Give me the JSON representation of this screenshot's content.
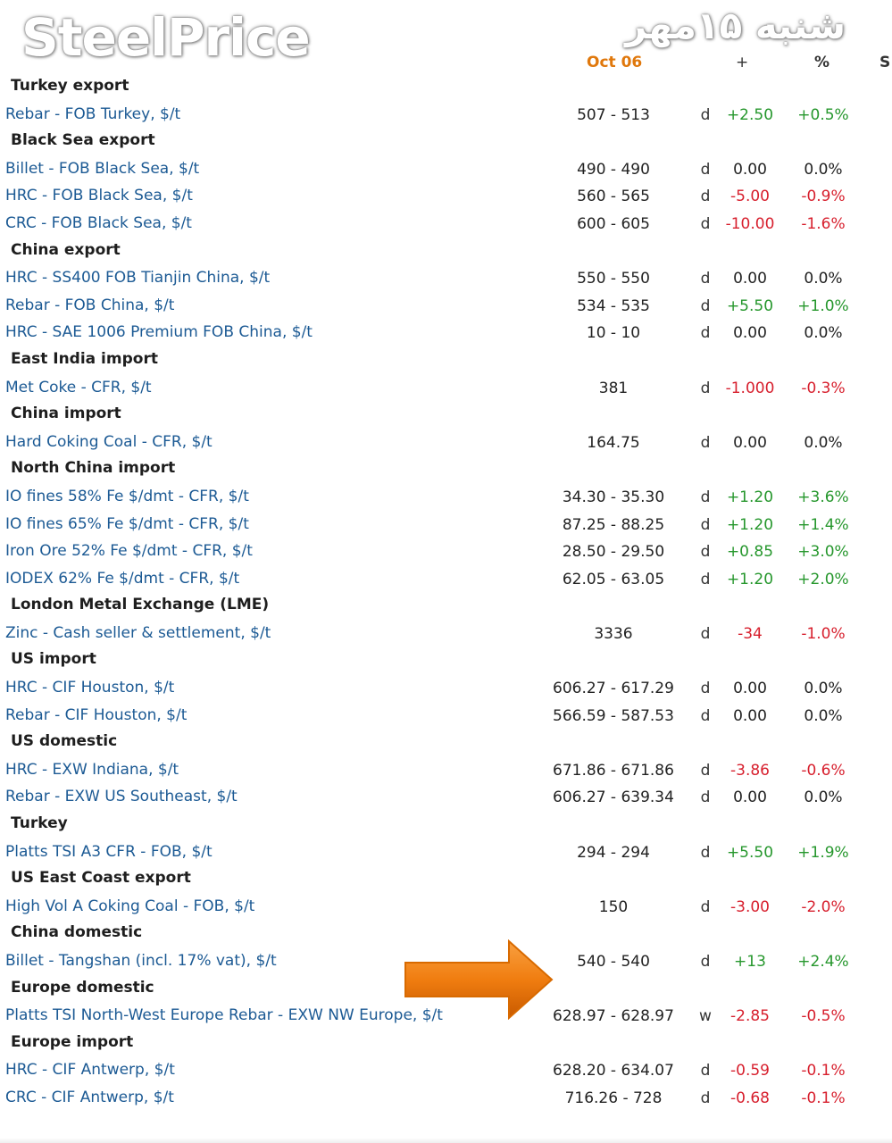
{
  "logo_text": "SteelPrice",
  "date_fa": "شنبه ۱۵مهر",
  "header": {
    "date": "Oct 06",
    "change": "+",
    "pct": "%",
    "s": "S"
  },
  "rows": [
    {
      "section": "Turkey export"
    },
    {
      "name": "Rebar - FOB Turkey, $/t",
      "range": "507 - 513",
      "freq": "d",
      "chg": "+2.50",
      "pct": "+0.5%",
      "dir": "up"
    },
    {
      "section": "Black Sea export"
    },
    {
      "name": "Billet - FOB Black Sea, $/t",
      "range": "490 - 490",
      "freq": "d",
      "chg": "0.00",
      "pct": "0.0%",
      "dir": "flat"
    },
    {
      "name": "HRC - FOB Black Sea, $/t",
      "range": "560 - 565",
      "freq": "d",
      "chg": "-5.00",
      "pct": "-0.9%",
      "dir": "down"
    },
    {
      "name": "CRC - FOB Black Sea, $/t",
      "range": "600 - 605",
      "freq": "d",
      "chg": "-10.00",
      "pct": "-1.6%",
      "dir": "down"
    },
    {
      "section": "China export"
    },
    {
      "name": "HRC - SS400 FOB Tianjin China, $/t",
      "range": "550 - 550",
      "freq": "d",
      "chg": "0.00",
      "pct": "0.0%",
      "dir": "flat"
    },
    {
      "name": "Rebar - FOB China, $/t",
      "range": "534 - 535",
      "freq": "d",
      "chg": "+5.50",
      "pct": "+1.0%",
      "dir": "up"
    },
    {
      "name": "HRC - SAE 1006 Premium FOB China, $/t",
      "range": "10 - 10",
      "freq": "d",
      "chg": "0.00",
      "pct": "0.0%",
      "dir": "flat"
    },
    {
      "section": "East India import"
    },
    {
      "name": "Met Coke - CFR, $/t",
      "range": "381",
      "freq": "d",
      "chg": "-1.000",
      "pct": "-0.3%",
      "dir": "down"
    },
    {
      "section": "China import"
    },
    {
      "name": "Hard Coking Coal - CFR, $/t",
      "range": "164.75",
      "freq": "d",
      "chg": "0.00",
      "pct": "0.0%",
      "dir": "flat"
    },
    {
      "section": "North China import"
    },
    {
      "name": "IO fines 58% Fe $/dmt - CFR, $/t",
      "range": "34.30 - 35.30",
      "freq": "d",
      "chg": "+1.20",
      "pct": "+3.6%",
      "dir": "up"
    },
    {
      "name": "IO fines 65% Fe $/dmt - CFR, $/t",
      "range": "87.25 - 88.25",
      "freq": "d",
      "chg": "+1.20",
      "pct": "+1.4%",
      "dir": "up"
    },
    {
      "name": "Iron Ore 52% Fe $/dmt - CFR, $/t",
      "range": "28.50 - 29.50",
      "freq": "d",
      "chg": "+0.85",
      "pct": "+3.0%",
      "dir": "up"
    },
    {
      "name": "IODEX 62% Fe $/dmt - CFR, $/t",
      "range": "62.05 - 63.05",
      "freq": "d",
      "chg": "+1.20",
      "pct": "+2.0%",
      "dir": "up"
    },
    {
      "section": "London Metal Exchange (LME)"
    },
    {
      "name": "Zinc - Cash seller & settlement, $/t",
      "range": "3336",
      "freq": "d",
      "chg": "-34",
      "pct": "-1.0%",
      "dir": "down"
    },
    {
      "section": "US import"
    },
    {
      "name": "HRC - CIF Houston, $/t",
      "range": "606.27 - 617.29",
      "freq": "d",
      "chg": "0.00",
      "pct": "0.0%",
      "dir": "flat"
    },
    {
      "name": "Rebar - CIF Houston, $/t",
      "range": "566.59 - 587.53",
      "freq": "d",
      "chg": "0.00",
      "pct": "0.0%",
      "dir": "flat"
    },
    {
      "section": "US domestic"
    },
    {
      "name": "HRC - EXW Indiana, $/t",
      "range": "671.86 - 671.86",
      "freq": "d",
      "chg": "-3.86",
      "pct": "-0.6%",
      "dir": "down"
    },
    {
      "name": "Rebar - EXW US Southeast, $/t",
      "range": "606.27 - 639.34",
      "freq": "d",
      "chg": "0.00",
      "pct": "0.0%",
      "dir": "flat"
    },
    {
      "section": "Turkey"
    },
    {
      "name": "Platts TSI A3 CFR - FOB, $/t",
      "range": "294 - 294",
      "freq": "d",
      "chg": "+5.50",
      "pct": "+1.9%",
      "dir": "up"
    },
    {
      "section": "US East Coast export"
    },
    {
      "name": "High Vol A Coking Coal - FOB, $/t",
      "range": "150",
      "freq": "d",
      "chg": "-3.00",
      "pct": "-2.0%",
      "dir": "down"
    },
    {
      "section": "China domestic"
    },
    {
      "name": "Billet - Tangshan (incl. 17% vat), $/t",
      "range": "540 - 540",
      "freq": "d",
      "chg": "+13",
      "pct": "+2.4%",
      "dir": "up"
    },
    {
      "section": "Europe domestic"
    },
    {
      "name": "Platts TSI North-West Europe Rebar - EXW NW Europe, $/t",
      "range": "628.97 - 628.97",
      "freq": "w",
      "chg": "-2.85",
      "pct": "-0.5%",
      "dir": "down"
    },
    {
      "section": "Europe import"
    },
    {
      "name": "HRC - CIF Antwerp, $/t",
      "range": "628.20 - 634.07",
      "freq": "d",
      "chg": "-0.59",
      "pct": "-0.1%",
      "dir": "down"
    },
    {
      "name": "CRC - CIF Antwerp, $/t",
      "range": "716.26 - 728",
      "freq": "d",
      "chg": "-0.68",
      "pct": "-0.1%",
      "dir": "down"
    }
  ],
  "colors": {
    "up": "#26972d",
    "down": "#d71f2d",
    "link": "#1c5a94",
    "date": "#e0780c",
    "arrow": "#f07d10"
  },
  "icons": {
    "highlight_arrow": "arrow-right-icon"
  }
}
